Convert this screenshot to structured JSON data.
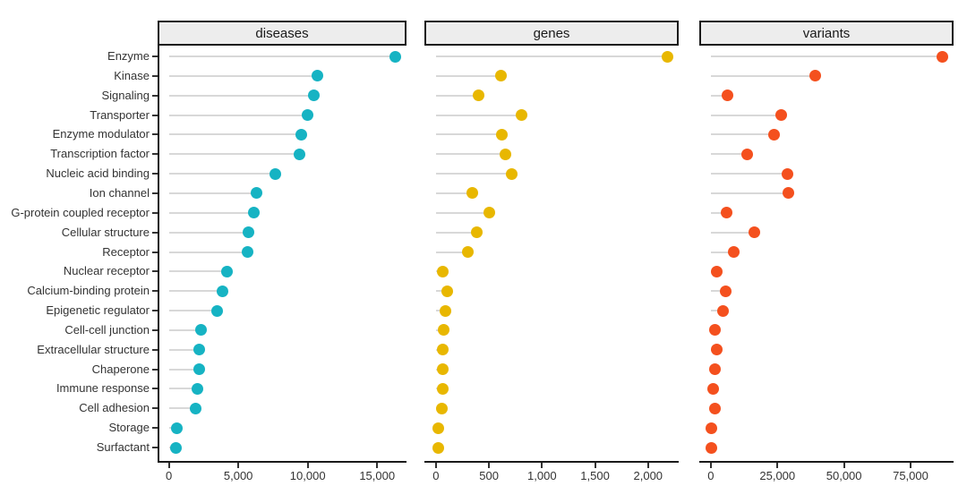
{
  "chart_data": {
    "type": "scatter",
    "variant": "faceted-lollipop-dot-plot",
    "title": "",
    "xlabel": "",
    "ylabel": "",
    "layout_hints": {
      "legend": "none",
      "grid": "off",
      "orientation": "horizontal",
      "facets": 3,
      "categories_sorted": "descending by diseases panel"
    },
    "categories": [
      "Enzyme",
      "Kinase",
      "Signaling",
      "Transporter",
      "Enzyme modulator",
      "Transcription factor",
      "Nucleic acid binding",
      "Ion channel",
      "G-protein coupled receptor",
      "Cellular structure",
      "Receptor",
      "Nuclear receptor",
      "Calcium-binding protein",
      "Epigenetic regulator",
      "Cell-cell junction",
      "Extracellular structure",
      "Chaperone",
      "Immune response",
      "Cell adhesion",
      "Storage",
      "Surfactant"
    ],
    "panels": [
      {
        "title": "diseases",
        "color": "#16B3C3",
        "stem_color": "#D8D8D8",
        "values": [
          16300,
          10700,
          10450,
          10000,
          9550,
          9400,
          7650,
          6300,
          6100,
          5700,
          5650,
          4200,
          3830,
          3500,
          2340,
          2200,
          2200,
          2080,
          1950,
          580,
          520
        ],
        "xlim_hint": [
          0,
          17400
        ],
        "tick_values": [
          0,
          5000,
          10000,
          15000
        ],
        "tick_labels": [
          "0",
          "5,000",
          "10,000",
          "15,000"
        ]
      },
      {
        "title": "genes",
        "color": "#E8B700",
        "stem_color": "#D8D8D8",
        "values": [
          2180,
          610,
          400,
          810,
          620,
          655,
          715,
          340,
          500,
          385,
          300,
          60,
          110,
          90,
          70,
          65,
          65,
          60,
          55,
          25,
          18
        ],
        "xlim_hint": [
          0,
          2300
        ],
        "tick_values": [
          0,
          500,
          1000,
          1500,
          2000
        ],
        "tick_labels": [
          "0",
          "500",
          "1,000",
          "1,500",
          "2,000"
        ]
      },
      {
        "title": "variants",
        "color": "#F4501E",
        "stem_color": "#D8D8D8",
        "values": [
          86800,
          39200,
          6250,
          26400,
          23600,
          13500,
          28800,
          29200,
          5900,
          16300,
          8700,
          2100,
          5500,
          4500,
          1400,
          2100,
          1400,
          900,
          1700,
          200,
          300
        ],
        "xlim_hint": [
          0,
          92000
        ],
        "tick_values": [
          0,
          25000,
          50000,
          75000
        ],
        "tick_labels": [
          "0",
          "25,000",
          "50,000",
          "75,000"
        ]
      }
    ]
  }
}
